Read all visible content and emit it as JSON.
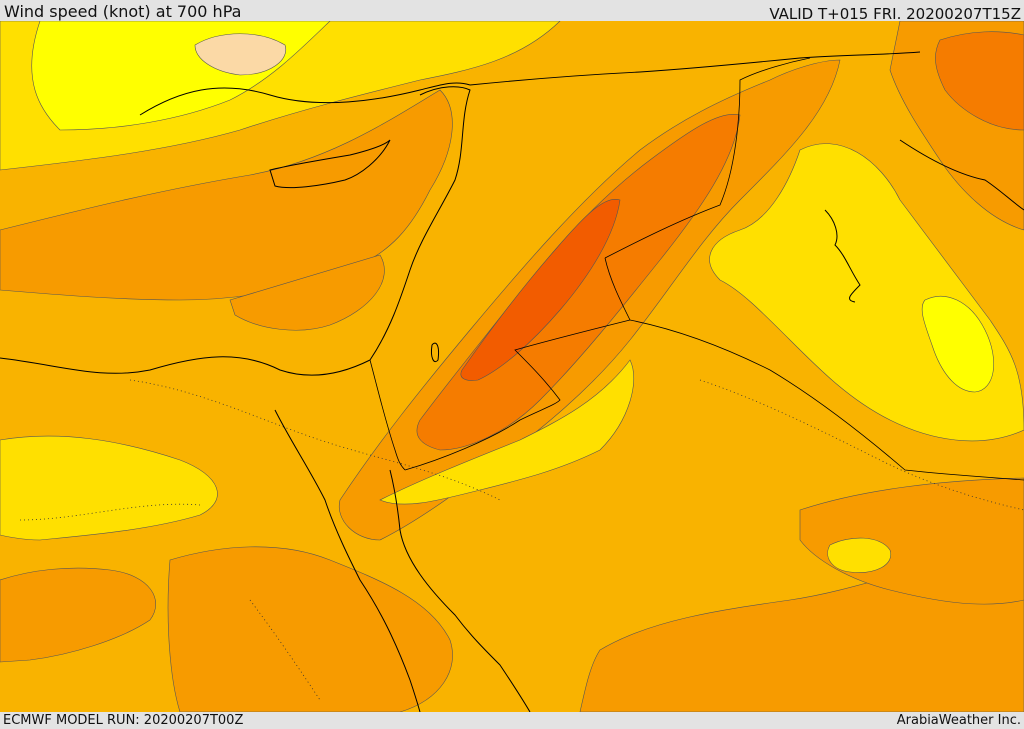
{
  "header": {
    "title": "Wind speed (knot) at 700 hPa",
    "valid": "VALID T+015 FRI. 20200207T15Z"
  },
  "footer": {
    "model_run": "ECMWF MODEL RUN: 20200207T00Z",
    "credit": "ArabiaWeather Inc."
  },
  "colors": {
    "band_5_10": "#ffff00",
    "band_10_15": "#ffe000",
    "band_15_20": "#f9b300",
    "band_20_25": "#f79b00",
    "band_25_30": "#f57c00",
    "band_30_35": "#f25c00",
    "band_light": "#fbd9a6",
    "contour": "#555555",
    "coast": "#000000"
  }
}
